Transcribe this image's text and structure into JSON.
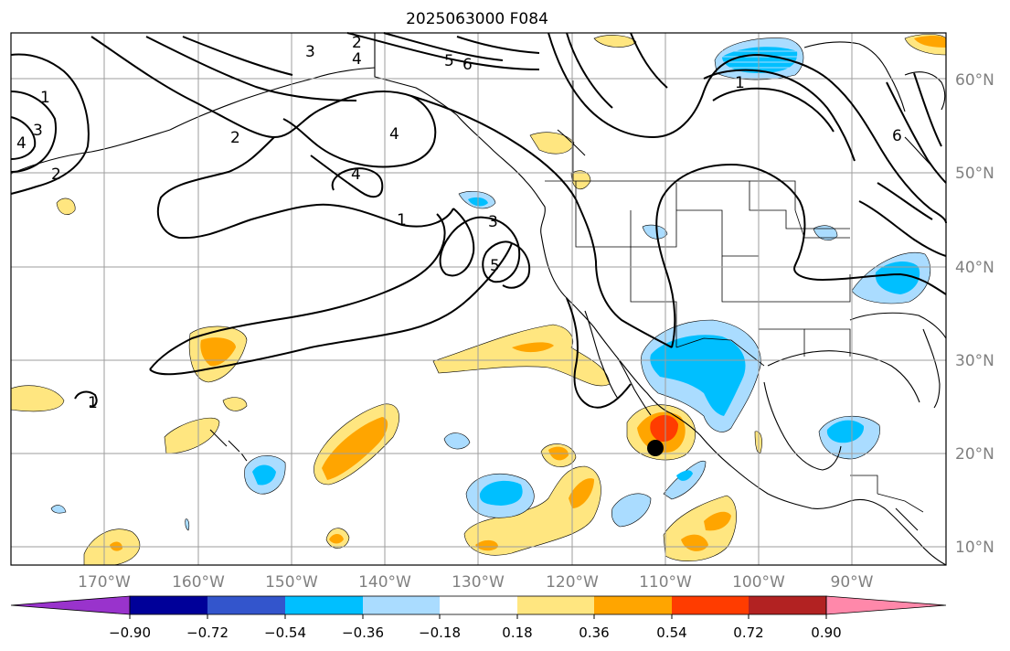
{
  "title": "2025063000 F084",
  "map": {
    "lat_labels": [
      "60°N",
      "50°N",
      "40°N",
      "30°N",
      "20°N",
      "10°N"
    ],
    "lon_labels": [
      "170°W",
      "160°W",
      "150°W",
      "140°W",
      "130°W",
      "120°W",
      "110°W",
      "100°W",
      "90°W"
    ],
    "contour_labels": [
      "1",
      "2",
      "3",
      "4",
      "5",
      "6"
    ],
    "marker": "black-dot"
  },
  "colorbar": {
    "ticks": [
      "−0.90",
      "−0.72",
      "−0.54",
      "−0.36",
      "−0.18",
      "0.18",
      "0.36",
      "0.54",
      "0.72",
      "0.90"
    ],
    "colors": [
      "#9933cc",
      "#000099",
      "#3355cc",
      "#00bfff",
      "#aadcff",
      "#ffffff",
      "#ffe680",
      "#ffa500",
      "#ff3c00",
      "#b22222",
      "#ff88aa"
    ]
  }
}
